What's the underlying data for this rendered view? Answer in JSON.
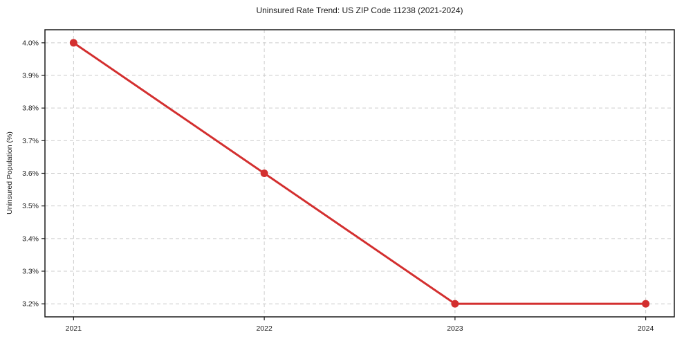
{
  "chart_data": {
    "type": "line",
    "title": "Uninsured Rate Trend: US ZIP Code 11238 (2021-2024)",
    "xlabel": "",
    "ylabel": "Uninsured Population (%)",
    "categories": [
      "2021",
      "2022",
      "2023",
      "2024"
    ],
    "x": [
      2021,
      2022,
      2023,
      2024
    ],
    "values": [
      4.0,
      3.6,
      3.2,
      3.2
    ],
    "yticks": [
      3.2,
      3.3,
      3.4,
      3.5,
      3.6,
      3.7,
      3.8,
      3.9,
      4.0
    ],
    "ytick_labels": [
      "3.2%",
      "3.3%",
      "3.4%",
      "3.5%",
      "3.6%",
      "3.7%",
      "3.8%",
      "3.9%",
      "4.0%"
    ],
    "xtick_labels": [
      "2021",
      "2022",
      "2023",
      "2024"
    ],
    "ylim": [
      3.16,
      4.04
    ],
    "xlim": [
      2020.85,
      2024.15
    ],
    "grid": true,
    "grid_style": "dashed",
    "legend": "none",
    "marker": "circle"
  },
  "styles": {
    "line_color": "#d32f2f",
    "marker_color": "#d32f2f",
    "grid_color": "#cccccc",
    "axis_color": "#1a1a1a",
    "text_color": "#1a1a1a",
    "background_color": "#ffffff"
  }
}
